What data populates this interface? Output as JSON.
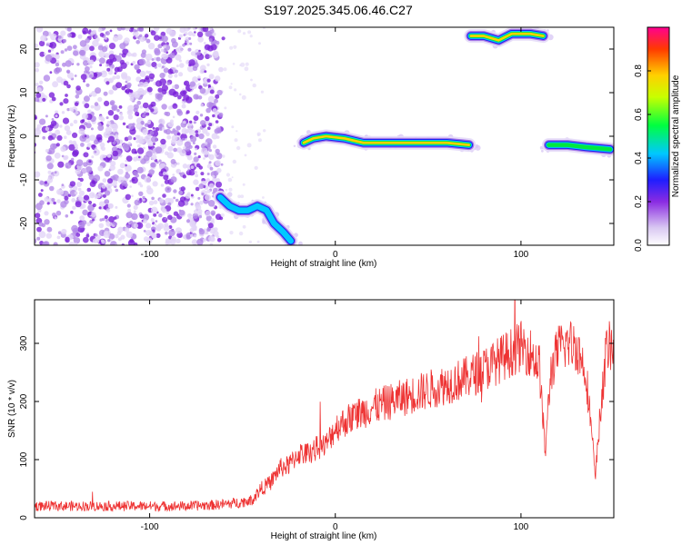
{
  "title": "S197.2025.345.06.46.C27",
  "chart_data": [
    {
      "type": "heatmap",
      "xlabel": "Height of straight line (km)",
      "ylabel": "Frequency (Hz)",
      "xlim": [
        -162,
        150
      ],
      "ylim": [
        -25,
        25
      ],
      "x_ticks": [
        -100,
        0,
        100
      ],
      "y_ticks": [
        -20,
        -10,
        0,
        10,
        20
      ],
      "colorbar": {
        "label": "Normalized spectral amplitude",
        "range": [
          0,
          1
        ],
        "ticks": [
          0.0,
          0.2,
          0.4,
          0.6,
          0.8
        ]
      },
      "features": [
        {
          "name": "noise-region",
          "x_range": [
            -162,
            -62
          ],
          "y_range": [
            -25,
            25
          ],
          "amplitude": 0.08
        },
        {
          "name": "low-branch",
          "points": [
            [
              -62,
              -14
            ],
            [
              -57,
              -16
            ],
            [
              -52,
              -17
            ],
            [
              -47,
              -17
            ],
            [
              -42,
              -16
            ],
            [
              -37,
              -17
            ],
            [
              -33,
              -20
            ],
            [
              -28,
              -22
            ],
            [
              -24,
              -24
            ]
          ],
          "amplitude": 0.5
        },
        {
          "name": "main-trace",
          "points": [
            [
              -17,
              -1.5
            ],
            [
              -12,
              -0.5
            ],
            [
              -5,
              0
            ],
            [
              5,
              -0.5
            ],
            [
              15,
              -1.5
            ],
            [
              30,
              -1.5
            ],
            [
              45,
              -1.5
            ],
            [
              60,
              -1.5
            ],
            [
              72,
              -2
            ]
          ],
          "amplitude": 0.85
        },
        {
          "name": "upper-trace",
          "points": [
            [
              73,
              23
            ],
            [
              80,
              23
            ],
            [
              88,
              22
            ],
            [
              95,
              23.5
            ],
            [
              105,
              23.5
            ],
            [
              112,
              23
            ]
          ],
          "amplitude": 0.85
        },
        {
          "name": "right-trace",
          "points": [
            [
              115,
              -2
            ],
            [
              125,
              -2
            ],
            [
              135,
              -2.5
            ],
            [
              148,
              -3
            ]
          ],
          "amplitude": 0.7
        }
      ]
    },
    {
      "type": "line",
      "xlabel": "Height of straight line (km)",
      "ylabel": "SNR (10 * v/v)",
      "xlim": [
        -162,
        150
      ],
      "ylim": [
        0,
        375
      ],
      "x_ticks": [
        -100,
        0,
        100
      ],
      "y_ticks": [
        0,
        100,
        200,
        300
      ],
      "color": "#ee3333",
      "series": [
        {
          "name": "SNR",
          "x": [
            -162,
            -140,
            -120,
            -100,
            -80,
            -65,
            -55,
            -45,
            -40,
            -35,
            -30,
            -25,
            -20,
            -15,
            -10,
            -5,
            0,
            10,
            20,
            30,
            40,
            50,
            60,
            70,
            80,
            90,
            100,
            105,
            110,
            113,
            116,
            120,
            125,
            130,
            135,
            138,
            140,
            143,
            146,
            150
          ],
          "values": [
            20,
            20,
            20,
            20,
            20,
            22,
            25,
            30,
            50,
            60,
            85,
            90,
            110,
            110,
            120,
            125,
            155,
            175,
            190,
            200,
            210,
            220,
            230,
            240,
            255,
            275,
            295,
            285,
            260,
            110,
            250,
            290,
            300,
            295,
            250,
            150,
            65,
            190,
            290,
            300
          ]
        }
      ]
    }
  ]
}
